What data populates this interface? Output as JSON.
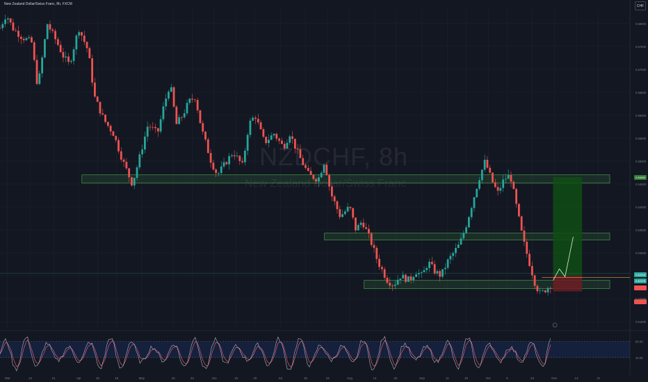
{
  "legend": "New Zealand Dollar/Swiss Franc, 8h, FXCM",
  "currency_button": "CHF",
  "watermark": {
    "title": "NZDCHF, 8h",
    "subtitle": "New Zealand Dollar/Swiss Franc"
  },
  "colors": {
    "background": "#131722",
    "up": "#26a69a",
    "down": "#ef5350",
    "zone_fill": "rgba(76,175,80,0.15)",
    "zone_stroke": "#4caf50",
    "target_fill": "#0f4d14",
    "stop_fill": "#6b1d22",
    "rsi_line": "#b2b5be",
    "rsi_signal": "#e05a6e",
    "rsi_band": "rgba(41,98,255,0.12)",
    "projection": "#e6f0e6",
    "entry_line": "#f0a040"
  },
  "price_tags": [
    {
      "label": "0.54653",
      "price": 0.5465,
      "color": "#2e7d32"
    },
    {
      "label": "0.52516",
      "price": 0.5252,
      "color": "#26a69a"
    },
    {
      "label": "0.52378",
      "price": 0.5238,
      "color": "#26a69a"
    },
    {
      "label": "",
      "price": 0.5224,
      "color": "#ef5350"
    },
    {
      "label": "",
      "price": 0.5193,
      "color": "#ef5350"
    }
  ],
  "chart_data": {
    "type": "candlestick",
    "title": "NZDCHF, 8h",
    "y_ticks": [
      0.58,
      0.575,
      0.57,
      0.565,
      0.56,
      0.555,
      0.55,
      0.545,
      0.54,
      0.535,
      0.53,
      0.525,
      0.52,
      0.515
    ],
    "y_tick_labels": [
      "0.58000",
      "0.57500",
      "0.57000",
      "0.56500",
      "0.56000",
      "0.55500",
      "0.55000",
      "0.54500",
      "0.54000",
      "0.53500",
      "0.53000",
      "0.52500",
      "0.52000",
      "0.51500"
    ],
    "ylim": [
      0.5135,
      0.583
    ],
    "x_tick_labels": [
      "Mar",
      "13",
      "21",
      "Apr",
      "15",
      "18",
      "May",
      "15",
      "23",
      "Jun",
      "15",
      "20",
      "Jul",
      "15",
      "24",
      "Aug",
      "14",
      "22",
      "Sep",
      "11",
      "18",
      "Oct",
      "9",
      "23",
      "Nov",
      "13",
      "21"
    ],
    "x_tick_fractions": [
      0.012,
      0.048,
      0.085,
      0.125,
      0.155,
      0.185,
      0.225,
      0.275,
      0.305,
      0.34,
      0.375,
      0.405,
      0.445,
      0.485,
      0.52,
      0.555,
      0.595,
      0.628,
      0.67,
      0.71,
      0.74,
      0.775,
      0.805,
      0.845,
      0.88,
      0.915,
      0.95
    ],
    "price_path": [
      [
        0.0,
        0.579
      ],
      [
        0.01,
        0.582
      ],
      [
        0.02,
        0.579
      ],
      [
        0.035,
        0.577
      ],
      [
        0.05,
        0.576
      ],
      [
        0.06,
        0.566
      ],
      [
        0.075,
        0.58
      ],
      [
        0.09,
        0.576
      ],
      [
        0.1,
        0.573
      ],
      [
        0.11,
        0.571
      ],
      [
        0.125,
        0.579
      ],
      [
        0.14,
        0.574
      ],
      [
        0.15,
        0.564
      ],
      [
        0.165,
        0.559
      ],
      [
        0.18,
        0.556
      ],
      [
        0.195,
        0.55
      ],
      [
        0.21,
        0.545
      ],
      [
        0.22,
        0.55
      ],
      [
        0.235,
        0.558
      ],
      [
        0.25,
        0.556
      ],
      [
        0.26,
        0.562
      ],
      [
        0.27,
        0.567
      ],
      [
        0.28,
        0.558
      ],
      [
        0.29,
        0.56
      ],
      [
        0.3,
        0.563
      ],
      [
        0.31,
        0.564
      ],
      [
        0.32,
        0.557
      ],
      [
        0.335,
        0.55
      ],
      [
        0.345,
        0.547
      ],
      [
        0.36,
        0.55
      ],
      [
        0.37,
        0.552
      ],
      [
        0.385,
        0.549
      ],
      [
        0.395,
        0.558
      ],
      [
        0.405,
        0.56
      ],
      [
        0.42,
        0.554
      ],
      [
        0.435,
        0.556
      ],
      [
        0.45,
        0.553
      ],
      [
        0.46,
        0.556
      ],
      [
        0.475,
        0.551
      ],
      [
        0.49,
        0.547
      ],
      [
        0.505,
        0.546
      ],
      [
        0.515,
        0.55
      ],
      [
        0.525,
        0.543
      ],
      [
        0.54,
        0.538
      ],
      [
        0.555,
        0.54
      ],
      [
        0.565,
        0.535
      ],
      [
        0.575,
        0.537
      ],
      [
        0.59,
        0.532
      ],
      [
        0.6,
        0.528
      ],
      [
        0.615,
        0.524
      ],
      [
        0.625,
        0.523
      ],
      [
        0.635,
        0.525
      ],
      [
        0.65,
        0.524
      ],
      [
        0.66,
        0.526
      ],
      [
        0.67,
        0.525
      ],
      [
        0.68,
        0.528
      ],
      [
        0.69,
        0.526
      ],
      [
        0.7,
        0.525
      ],
      [
        0.71,
        0.528
      ],
      [
        0.72,
        0.53
      ],
      [
        0.73,
        0.532
      ],
      [
        0.74,
        0.536
      ],
      [
        0.75,
        0.541
      ],
      [
        0.76,
        0.546
      ],
      [
        0.77,
        0.55
      ],
      [
        0.78,
        0.546
      ],
      [
        0.79,
        0.543
      ],
      [
        0.8,
        0.546
      ],
      [
        0.81,
        0.547
      ],
      [
        0.82,
        0.54
      ],
      [
        0.83,
        0.533
      ],
      [
        0.84,
        0.528
      ],
      [
        0.85,
        0.523
      ],
      [
        0.858,
        0.521
      ],
      [
        0.866,
        0.522
      ],
      [
        0.874,
        0.523
      ]
    ],
    "rsi_levels": [
      80,
      40
    ],
    "rsi_tick_labels": [
      "80.00",
      "40.00"
    ]
  }
}
